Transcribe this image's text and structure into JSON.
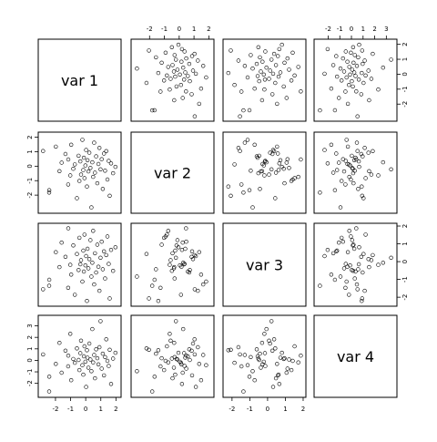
{
  "chart_data": {
    "type": "scatter",
    "kind": "scatterplot-matrix",
    "variables": [
      "var 1",
      "var 2",
      "var 3",
      "var 4"
    ],
    "ranges": [
      [
        -2.9,
        2.1
      ],
      [
        -3.0,
        2.1
      ],
      [
        -2.3,
        1.95
      ],
      [
        -2.9,
        3.6
      ]
    ],
    "tick_values": [
      [
        -2,
        -1,
        0,
        1,
        2
      ],
      [
        -2,
        -1,
        0,
        1,
        2
      ],
      [
        -2,
        -1,
        0,
        1,
        2
      ],
      [
        -2,
        -1,
        0,
        1,
        2,
        3
      ]
    ],
    "tick_labels": [
      [
        "-2",
        "-1",
        "0",
        "1",
        "2"
      ],
      [
        "-2",
        "-1",
        "0",
        "1",
        "2"
      ],
      [
        "-2",
        "-1",
        "0",
        "1",
        "2"
      ],
      [
        "-2",
        "-1",
        "0",
        "1",
        "2",
        "3"
      ]
    ],
    "point_count": 50,
    "columns": {
      "var 1": [
        -2.82,
        -2.42,
        -2.41,
        -1.98,
        -1.74,
        -1.59,
        -1.34,
        -1.16,
        -1.15,
        -1.02,
        -0.96,
        -0.82,
        -0.72,
        -0.58,
        -0.47,
        -0.42,
        -0.36,
        -0.31,
        -0.22,
        -0.16,
        -0.12,
        -0.08,
        -0.02,
        0.03,
        0.08,
        0.12,
        0.18,
        0.24,
        0.31,
        0.38,
        0.44,
        0.49,
        0.56,
        0.61,
        0.69,
        0.77,
        0.84,
        0.91,
        0.98,
        1.06,
        1.13,
        1.21,
        1.28,
        1.36,
        1.44,
        1.52,
        1.59,
        1.68,
        1.81,
        1.97
      ],
      "var 2": [
        1.05,
        -1.82,
        -1.66,
        1.35,
        -0.34,
        0.24,
        0.84,
        -1.26,
        0.46,
        -0.64,
        1.48,
        -0.18,
        0.12,
        -2.21,
        0.72,
        -1.02,
        0.33,
        -0.58,
        1.82,
        -0.27,
        0.58,
        -0.83,
        0.05,
        1.12,
        -1.41,
        0.41,
        -0.36,
        0.93,
        -0.12,
        -2.85,
        0.27,
        -0.74,
        1.62,
        -0.45,
        0.68,
        -1.18,
        0.15,
        1.26,
        -0.22,
        0.48,
        -1.57,
        0.87,
        -0.31,
        1.04,
        -0.92,
        0.36,
        -2.04,
        0.19,
        -0.49,
        -0.05
      ],
      "var 3": [
        -1.55,
        -1.36,
        -1.02,
        0.53,
        -0.31,
        1.07,
        0.27,
        -1.47,
        1.87,
        -0.18,
        -0.73,
        0.91,
        -1.86,
        0.43,
        -0.47,
        1.34,
        -0.15,
        0.08,
        -1.12,
        0.62,
        -0.56,
        1.52,
        -0.21,
        0.31,
        -2.21,
        0.72,
        -0.38,
        0.14,
        1.21,
        -0.84,
        -0.06,
        1.73,
        -1.28,
        0.47,
        -0.61,
        0.95,
        -0.29,
        -1.64,
        0.22,
        1.12,
        -0.43,
        0.58,
        -0.95,
        0.37,
        1.41,
        -0.13,
        -2.07,
        0.66,
        -0.52,
        0.81
      ],
      "var 4": [
        0.52,
        -2.71,
        -1.42,
        -0.31,
        1.52,
        -1.08,
        0.84,
        -0.52,
        0.41,
        2.31,
        -1.73,
        0.12,
        -0.21,
        1.04,
        0.03,
        -0.85,
        0.63,
        1.71,
        -0.42,
        -1.24,
        0.35,
        1.22,
        -0.12,
        -2.31,
        0.88,
        0.24,
        -0.63,
        1.46,
        0.07,
        -0.94,
        2.72,
        -0.18,
        0.47,
        -1.56,
        0.96,
        0.18,
        -0.35,
        1.14,
        3.41,
        -0.72,
        0.58,
        -1.31,
        0.29,
        1.83,
        -0.05,
        -0.49,
        0.92,
        -2.05,
        0.15,
        0.66
      ]
    }
  }
}
